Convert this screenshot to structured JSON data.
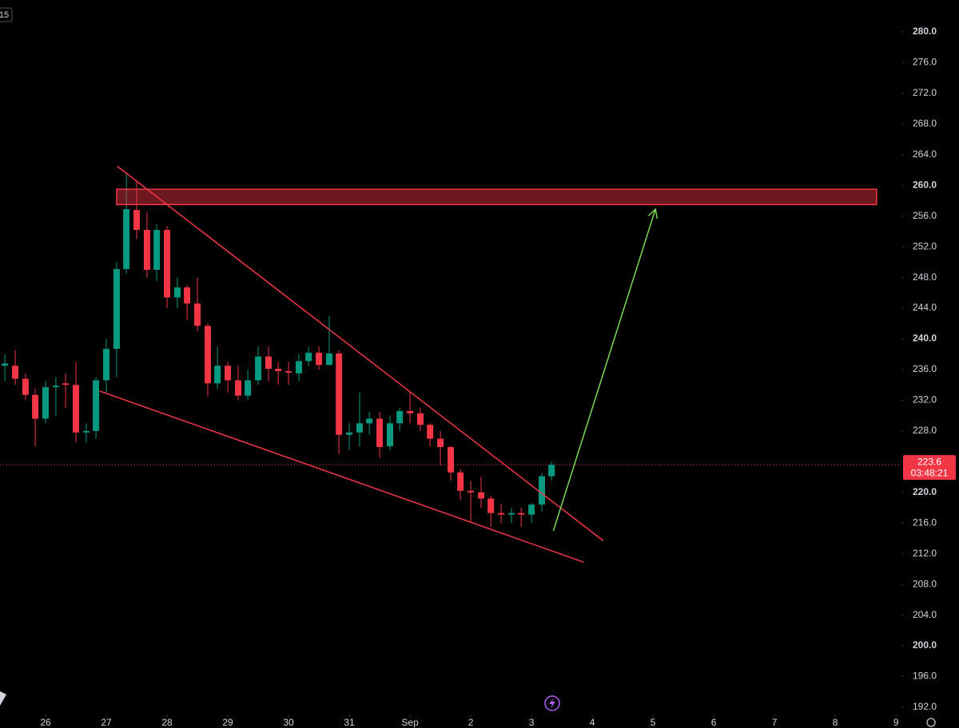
{
  "chart_data": {
    "type": "candlestick",
    "interval_label": "15",
    "x": [
      25.33,
      25.5,
      25.67,
      25.83,
      26,
      26.17,
      26.33,
      26.5,
      26.67,
      26.83,
      27,
      27.17,
      27.33,
      27.5,
      27.67,
      27.83,
      28,
      28.17,
      28.33,
      28.5,
      28.67,
      28.83,
      29,
      29.17,
      29.33,
      29.5,
      29.67,
      29.83,
      30,
      30.17,
      30.33,
      30.5,
      30.67,
      30.83,
      31,
      31.17,
      31.33,
      31.5,
      31.67,
      31.83,
      32,
      32.17,
      32.33,
      32.5,
      32.67,
      32.83,
      33,
      33.17,
      33.33,
      33.5,
      33.67,
      33.83,
      34,
      34.17,
      34.33
    ],
    "open": [
      236.5,
      236.5,
      234.8,
      232.7,
      229.6,
      233.7,
      234.2,
      234.0,
      227.8,
      228.0,
      234.6,
      238.7,
      249.1,
      256.8,
      254.2,
      249.0,
      254.2,
      245.4,
      246.7,
      244.6,
      241.7,
      234.2,
      236.5,
      234.6,
      232.6,
      234.6,
      237.7,
      236.1,
      235.8,
      235.5,
      237.1,
      238.2,
      236.6,
      238.1,
      227.5,
      227.8,
      229.0,
      229.6,
      226.0,
      229.0,
      230.6,
      230.3,
      228.8,
      227.0,
      225.9,
      222.6,
      220.2,
      220.0,
      219.2,
      217.3,
      217.1,
      217.3,
      217.1,
      218.4,
      222.1
    ],
    "high": [
      238,
      238.5,
      235.5,
      233.5,
      234.5,
      235,
      235.5,
      237,
      229,
      235,
      240,
      250,
      261.5,
      260.5,
      256.5,
      255,
      254.7,
      248,
      247,
      248,
      242,
      239,
      237,
      236.5,
      236,
      239,
      239,
      237,
      237,
      238,
      239,
      239,
      243,
      238.5,
      229,
      233,
      230.5,
      230.5,
      230,
      231,
      233,
      231,
      229,
      228,
      226,
      223,
      221.5,
      222,
      219.5,
      218.5,
      218,
      218,
      218.6,
      222.5,
      224
    ],
    "low": [
      234.5,
      234,
      232,
      226,
      229,
      230,
      231,
      226.5,
      226.5,
      227,
      233,
      235,
      248.5,
      253,
      248,
      247.5,
      244,
      244,
      242.5,
      241,
      232.5,
      233.5,
      233,
      232,
      232,
      234,
      234.5,
      234,
      234,
      234.5,
      236.5,
      236,
      236.5,
      225,
      225.5,
      226,
      227.5,
      224.5,
      225.5,
      228,
      229,
      228,
      226,
      223.5,
      221.5,
      219,
      216,
      218,
      215.5,
      216,
      216,
      215.5,
      216,
      217.5,
      221.5
    ],
    "close": [
      236.8,
      234.8,
      232.7,
      229.6,
      233.7,
      233.9,
      234.0,
      227.8,
      228.0,
      234.6,
      238.7,
      249.1,
      256.9,
      254.2,
      249.0,
      254.2,
      245.4,
      246.7,
      244.6,
      241.7,
      234.2,
      236.5,
      234.6,
      232.6,
      234.6,
      237.7,
      236.1,
      235.8,
      235.6,
      237.1,
      238.2,
      236.6,
      238.1,
      227.5,
      227.8,
      229.0,
      229.6,
      225.9,
      229.0,
      230.6,
      230.3,
      228.8,
      227.0,
      225.9,
      222.6,
      220.2,
      220.0,
      219.2,
      217.3,
      217.1,
      217.3,
      217.1,
      218.4,
      222.1,
      223.6
    ],
    "up_color": "#089981",
    "down_color": "#f23645",
    "last_price": 223.6,
    "countdown": "03:48:21",
    "zone": {
      "x": [
        27.17,
        39.68
      ],
      "y": [
        257.5,
        259.5
      ],
      "color": "#f23645"
    },
    "trendlines": [
      {
        "x": [
          27.18,
          35.18
        ],
        "y": [
          262.5,
          213.7
        ],
        "color": "#f23645"
      },
      {
        "x": [
          26.89,
          34.86
        ],
        "y": [
          233.2,
          210.9
        ],
        "color": "#f23645"
      }
    ],
    "arrow": {
      "x": [
        34.36,
        36.04
      ],
      "y": [
        215.0,
        256.9
      ],
      "color": "#7bd957"
    },
    "xlim": [
      25.25,
      40.09
    ],
    "ylim": [
      191.06,
      284.16
    ],
    "xticks": [
      26,
      27,
      28,
      29,
      30,
      31,
      {
        "value": 32,
        "label": "Sep"
      },
      {
        "value": 33,
        "label": "2"
      },
      {
        "value": 34,
        "label": "3"
      },
      {
        "value": 35,
        "label": "4"
      },
      {
        "value": 36,
        "label": "5"
      },
      {
        "value": 37,
        "label": "6"
      },
      {
        "value": 38,
        "label": "7"
      },
      {
        "value": 39,
        "label": "8"
      },
      {
        "value": 40,
        "label": "9"
      }
    ],
    "yticks": [
      {
        "value": 192,
        "label": "192.0"
      },
      {
        "value": 196,
        "label": "196.0"
      },
      {
        "value": 200,
        "label": "200.0"
      },
      {
        "value": 204,
        "label": "204.0"
      },
      {
        "value": 208,
        "label": "208.0"
      },
      {
        "value": 212,
        "label": "212.0"
      },
      {
        "value": 216,
        "label": "216.0"
      },
      {
        "value": 220,
        "label": "220.0"
      },
      {
        "value": 224,
        "label": "224.0"
      },
      {
        "value": 228,
        "label": "228.0"
      },
      {
        "value": 232,
        "label": "232.0"
      },
      {
        "value": 236,
        "label": "236.0"
      },
      {
        "value": 240,
        "label": "240.0"
      },
      {
        "value": 244,
        "label": "244.0"
      },
      {
        "value": 248,
        "label": "248.0"
      },
      {
        "value": 252,
        "label": "252.0"
      },
      {
        "value": 256,
        "label": "256.0"
      },
      {
        "value": 260,
        "label": "260.0"
      },
      {
        "value": 264,
        "label": "264.0"
      },
      {
        "value": 268,
        "label": "268.0"
      },
      {
        "value": 272,
        "label": "272.0"
      },
      {
        "value": 276,
        "label": "276.0"
      },
      {
        "value": 280,
        "label": "280.0"
      }
    ]
  }
}
